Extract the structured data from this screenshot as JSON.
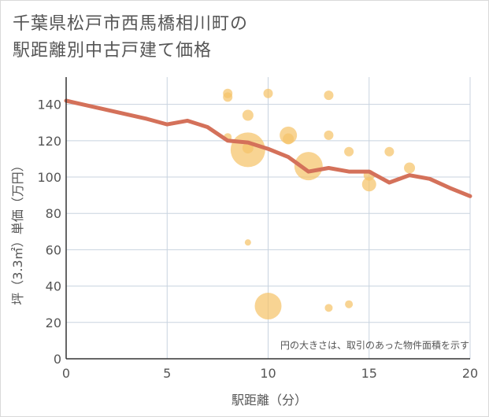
{
  "title": "千葉県松戸市西馬橋相川町の\n駅距離別中古戸建て価格",
  "chart_data": {
    "type": "scatter",
    "xlabel": "駅距離（分）",
    "ylabel": "坪（3.3㎡）単価（万円）",
    "xlim": [
      0,
      20
    ],
    "ylim": [
      0,
      155
    ],
    "xticks": [
      "0",
      "5",
      "10",
      "15",
      "20"
    ],
    "yticks": [
      "0",
      "20",
      "40",
      "60",
      "80",
      "100",
      "120",
      "140"
    ],
    "annotation": "円の大きさは、取引のあった物件面積を示す",
    "grid": true,
    "colors": {
      "bubble": "#f5c36a",
      "line": "#d4715a",
      "grid": "#c8d3df",
      "axis": "#333333"
    },
    "bubbles": [
      {
        "x": 8,
        "y": 146,
        "size": 6
      },
      {
        "x": 8,
        "y": 144,
        "size": 6
      },
      {
        "x": 8,
        "y": 122,
        "size": 5
      },
      {
        "x": 9,
        "y": 134,
        "size": 7
      },
      {
        "x": 9,
        "y": 116,
        "size": 7
      },
      {
        "x": 9,
        "y": 115,
        "size": 22
      },
      {
        "x": 9,
        "y": 64,
        "size": 4
      },
      {
        "x": 10,
        "y": 146,
        "size": 6
      },
      {
        "x": 10,
        "y": 29,
        "size": 17
      },
      {
        "x": 11,
        "y": 123,
        "size": 11
      },
      {
        "x": 11,
        "y": 121,
        "size": 7
      },
      {
        "x": 12,
        "y": 106,
        "size": 18
      },
      {
        "x": 13,
        "y": 145,
        "size": 6
      },
      {
        "x": 13,
        "y": 123,
        "size": 6
      },
      {
        "x": 13,
        "y": 28,
        "size": 5
      },
      {
        "x": 14,
        "y": 114,
        "size": 6
      },
      {
        "x": 14,
        "y": 30,
        "size": 5
      },
      {
        "x": 15,
        "y": 101,
        "size": 7
      },
      {
        "x": 15,
        "y": 96,
        "size": 9
      },
      {
        "x": 16,
        "y": 114,
        "size": 6
      },
      {
        "x": 17,
        "y": 105,
        "size": 7
      }
    ],
    "trend": {
      "x": [
        0,
        1,
        2,
        3,
        4,
        5,
        6,
        7,
        8,
        9,
        10,
        11,
        12,
        13,
        14,
        15,
        16,
        17,
        18,
        19,
        20
      ],
      "y": [
        142,
        139.5,
        137,
        134.5,
        132,
        129,
        131,
        127.5,
        120,
        119,
        115.5,
        111,
        103,
        105,
        103,
        103,
        97,
        101,
        99,
        94,
        89.5
      ]
    }
  }
}
